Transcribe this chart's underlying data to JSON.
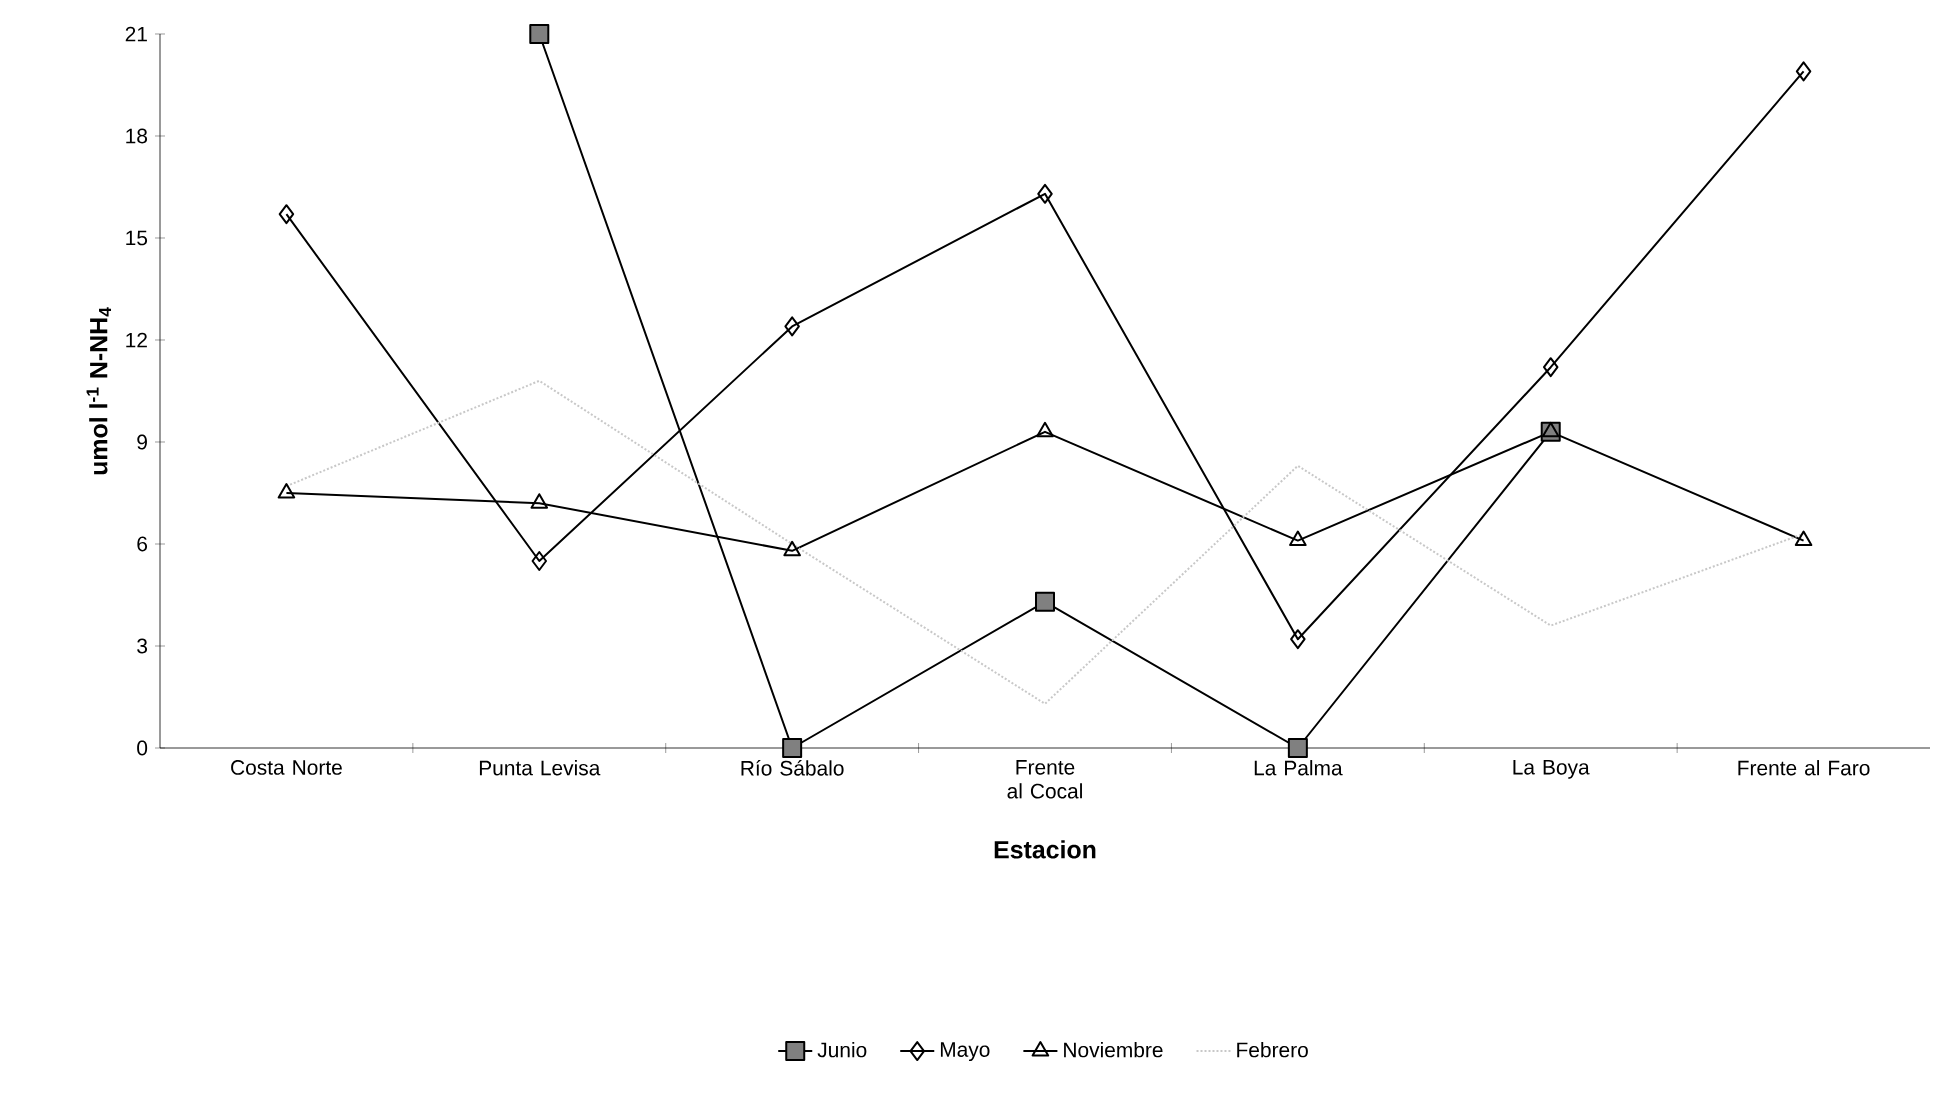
{
  "chart_data": {
    "type": "line",
    "xlabel": "Estacion",
    "ylabel": "umol l$^{-1}$ N-NH$_{4}$",
    "categories": [
      "Costa Norte",
      "Punta Levisa",
      "Río Sábalo",
      "Frente al Cocal",
      "La Palma",
      "La Boya",
      "Frente al Faro"
    ],
    "ylim": [
      0,
      21
    ],
    "yticks": [
      0,
      3,
      6,
      9,
      12,
      15,
      18,
      21
    ],
    "grid": false,
    "legend": "bottom",
    "line_style": "solid",
    "series": [
      {
        "name": "Junio",
        "color": "#000000",
        "marker": "square",
        "values": [
          null,
          21,
          0,
          4.3,
          0,
          9.3,
          null
        ]
      },
      {
        "name": "Mayo",
        "color": "#000000",
        "marker": "diamond",
        "values": [
          15.7,
          5.5,
          12.4,
          16.3,
          3.2,
          11.2,
          19.9
        ]
      },
      {
        "name": "Noviembre",
        "color": "#000000",
        "marker": "triangle",
        "values": [
          7.5,
          7.2,
          5.8,
          9.3,
          6.1,
          9.3,
          6.1
        ]
      },
      {
        "name": "Febrero",
        "color": "#c8c8c8",
        "marker": "none",
        "line_style": "dotted",
        "values": [
          7.7,
          10.8,
          6.0,
          1.3,
          8.3,
          3.6,
          6.3
        ]
      }
    ]
  }
}
